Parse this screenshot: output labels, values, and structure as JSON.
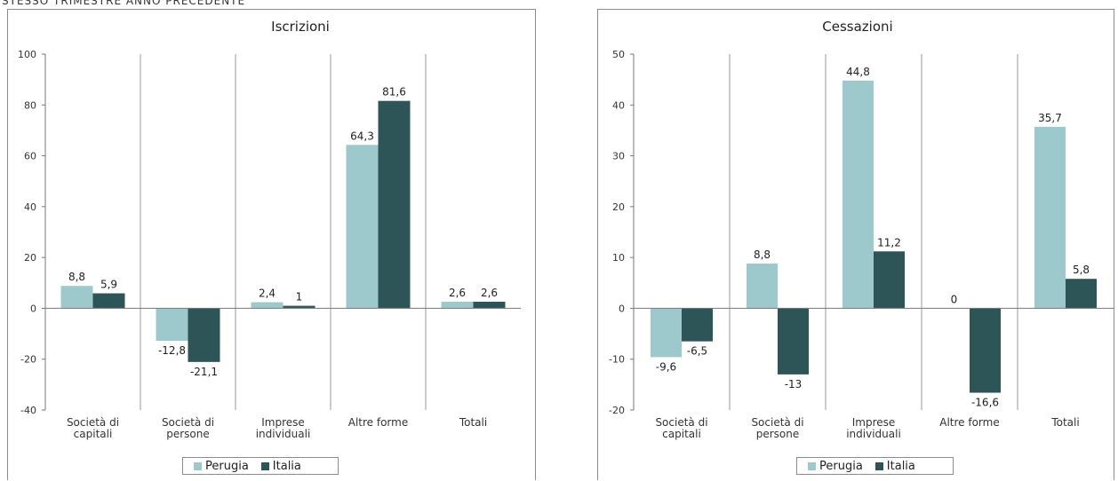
{
  "page": {
    "heading": "STESSO TRIMESTRE ANNO PRECEDENTE"
  },
  "colors": {
    "perugia": "#9dc8cc",
    "italia": "#2d5558",
    "grid": "#9a9a9a",
    "axis": "#777777"
  },
  "chart_data": [
    {
      "id": "iscrizioni",
      "type": "bar",
      "title": "Iscrizioni",
      "categories": [
        [
          "Società di",
          "capitali"
        ],
        [
          "Società di",
          "persone"
        ],
        [
          "Imprese",
          "individuali"
        ],
        [
          "Altre forme"
        ],
        [
          "Totali"
        ]
      ],
      "series": [
        {
          "name": "Perugia",
          "values": [
            8.8,
            -12.8,
            2.4,
            64.3,
            2.6
          ],
          "labels": [
            "8,8",
            "-12,8",
            "2,4",
            "64,3",
            "2,6"
          ]
        },
        {
          "name": "Italia",
          "values": [
            5.9,
            -21.1,
            1,
            81.6,
            2.6
          ],
          "labels": [
            "5,9",
            "-21,1",
            "1",
            "81,6",
            "2,6"
          ]
        }
      ],
      "ylim": [
        -40,
        100
      ],
      "yticks": [
        -40,
        -20,
        0,
        20,
        40,
        60,
        80,
        100
      ],
      "ytick_labels": [
        "-40",
        "-20",
        "0",
        "20",
        "40",
        "60",
        "80",
        "100"
      ],
      "grid": "vertical category separators",
      "legend": "bottom-center"
    },
    {
      "id": "cessazioni",
      "type": "bar",
      "title": "Cessazioni",
      "categories": [
        [
          "Società di",
          "capitali"
        ],
        [
          "Società di",
          "persone"
        ],
        [
          "Imprese",
          "individuali"
        ],
        [
          "Altre forme"
        ],
        [
          "Totali"
        ]
      ],
      "series": [
        {
          "name": "Perugia",
          "values": [
            -9.6,
            8.8,
            44.8,
            0,
            35.7
          ],
          "labels": [
            "-9,6",
            "8,8",
            "44,8",
            "0",
            "35,7"
          ]
        },
        {
          "name": "Italia",
          "values": [
            -6.5,
            -13,
            11.2,
            -16.6,
            5.8
          ],
          "labels": [
            "-6,5",
            "-13",
            "11,2",
            "-16,6",
            "5,8"
          ]
        }
      ],
      "ylim": [
        -20,
        50
      ],
      "yticks": [
        -20,
        -10,
        0,
        10,
        20,
        30,
        40,
        50
      ],
      "ytick_labels": [
        "-20",
        "-10",
        "0",
        "10",
        "20",
        "30",
        "40",
        "50"
      ],
      "grid": "vertical category separators",
      "legend": "bottom-center"
    }
  ]
}
